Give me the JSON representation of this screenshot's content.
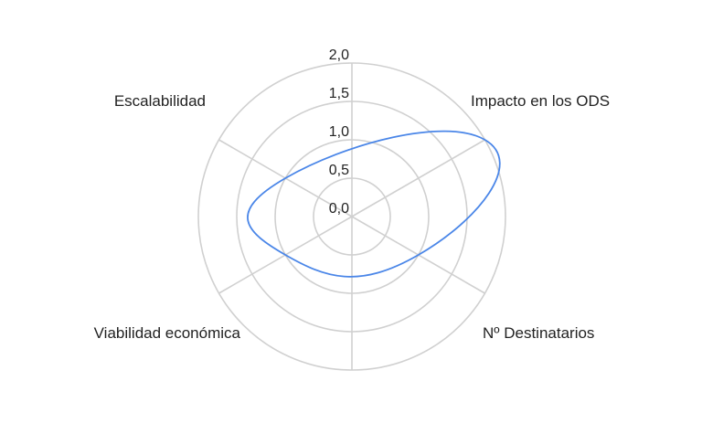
{
  "chart_data": {
    "type": "radar",
    "axes": [
      "Impacto en los ODS",
      "Nº Destinatarios",
      "Viabilidad económica",
      "Escalabilidad"
    ],
    "tick_labels": [
      "0,0",
      "0,5",
      "1,0",
      "1,5",
      "2,0"
    ],
    "ticks": [
      0,
      0.5,
      1.0,
      1.5,
      2.0
    ],
    "rlim": [
      0,
      2.0
    ],
    "series": [
      {
        "values": [
          2.0,
          1.0,
          1.0,
          1.0
        ],
        "color": "#4a86e8"
      }
    ],
    "grid": true,
    "legend": "none"
  }
}
